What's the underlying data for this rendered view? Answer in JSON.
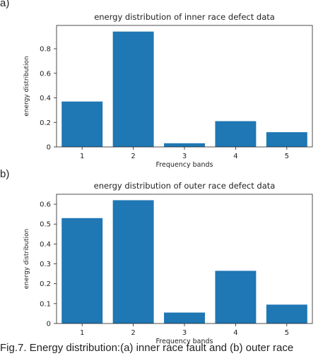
{
  "panel_labels": [
    "a)",
    "b)"
  ],
  "caption": "Fig.7. Energy distribution:(a) inner race fault and (b) outer race",
  "chart_data": [
    {
      "type": "bar",
      "title": "energy distribution of inner race defect data",
      "xlabel": "Frequency bands",
      "ylabel": "energy distribution",
      "categories": [
        "1",
        "2",
        "3",
        "4",
        "5"
      ],
      "values": [
        0.37,
        0.94,
        0.03,
        0.21,
        0.12
      ],
      "yticks": [
        0.0,
        0.2,
        0.4,
        0.6,
        0.8
      ],
      "ylim": [
        0,
        0.99
      ],
      "bar_color": "#1f77b4",
      "grid": false
    },
    {
      "type": "bar",
      "title": "energy distribution of outer race defect data",
      "xlabel": "Frequency bands",
      "ylabel": "energy distribution",
      "categories": [
        "1",
        "2",
        "3",
        "4",
        "5"
      ],
      "values": [
        0.53,
        0.62,
        0.055,
        0.265,
        0.095
      ],
      "yticks": [
        0.0,
        0.1,
        0.2,
        0.3,
        0.4,
        0.5,
        0.6
      ],
      "ylim": [
        0,
        0.65
      ],
      "bar_color": "#1f77b4",
      "grid": false
    }
  ]
}
